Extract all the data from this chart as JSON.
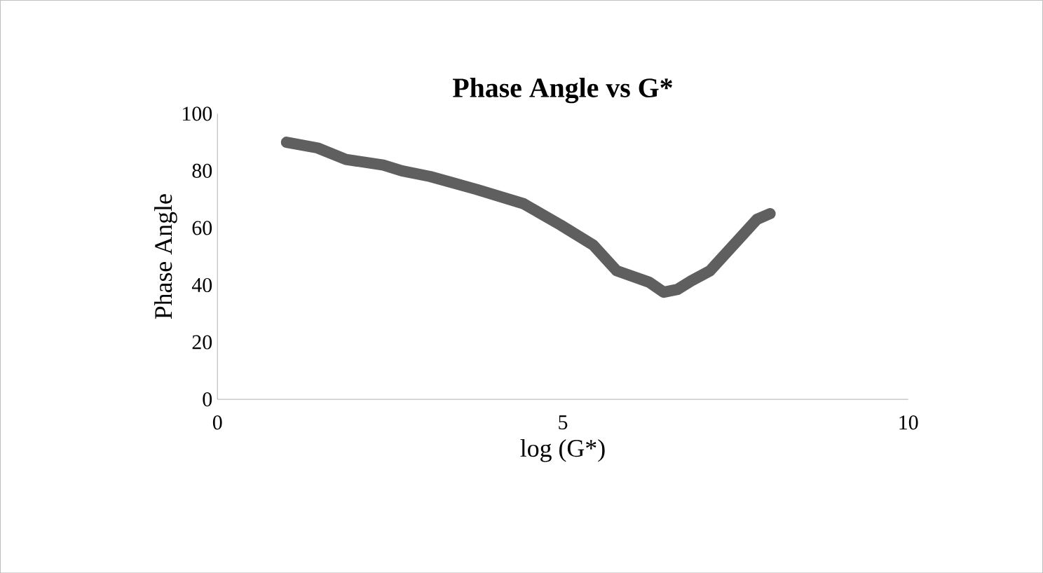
{
  "chart_data": {
    "type": "line",
    "title": "Phase Angle vs G*",
    "xlabel": "log (G*)",
    "ylabel": "Phase Angle",
    "xlim": [
      0,
      10
    ],
    "xticks": [
      0,
      5,
      10
    ],
    "ylim": [
      0,
      100
    ],
    "yticks": [
      0,
      20,
      40,
      60,
      80,
      100
    ],
    "grid": false,
    "marker": "none",
    "series": [
      {
        "color": "#5f5f5f",
        "x": [
          1.0,
          1.45,
          1.86,
          2.4,
          2.67,
          3.08,
          3.75,
          4.43,
          4.97,
          5.44,
          5.78,
          6.25,
          6.46,
          6.66,
          6.86,
          7.13,
          7.81,
          8.0
        ],
        "values": [
          90,
          88,
          84,
          82,
          80,
          78,
          73.5,
          68.5,
          61,
          54,
          45,
          41,
          37.5,
          38.5,
          41.5,
          45,
          63,
          65
        ]
      }
    ]
  }
}
